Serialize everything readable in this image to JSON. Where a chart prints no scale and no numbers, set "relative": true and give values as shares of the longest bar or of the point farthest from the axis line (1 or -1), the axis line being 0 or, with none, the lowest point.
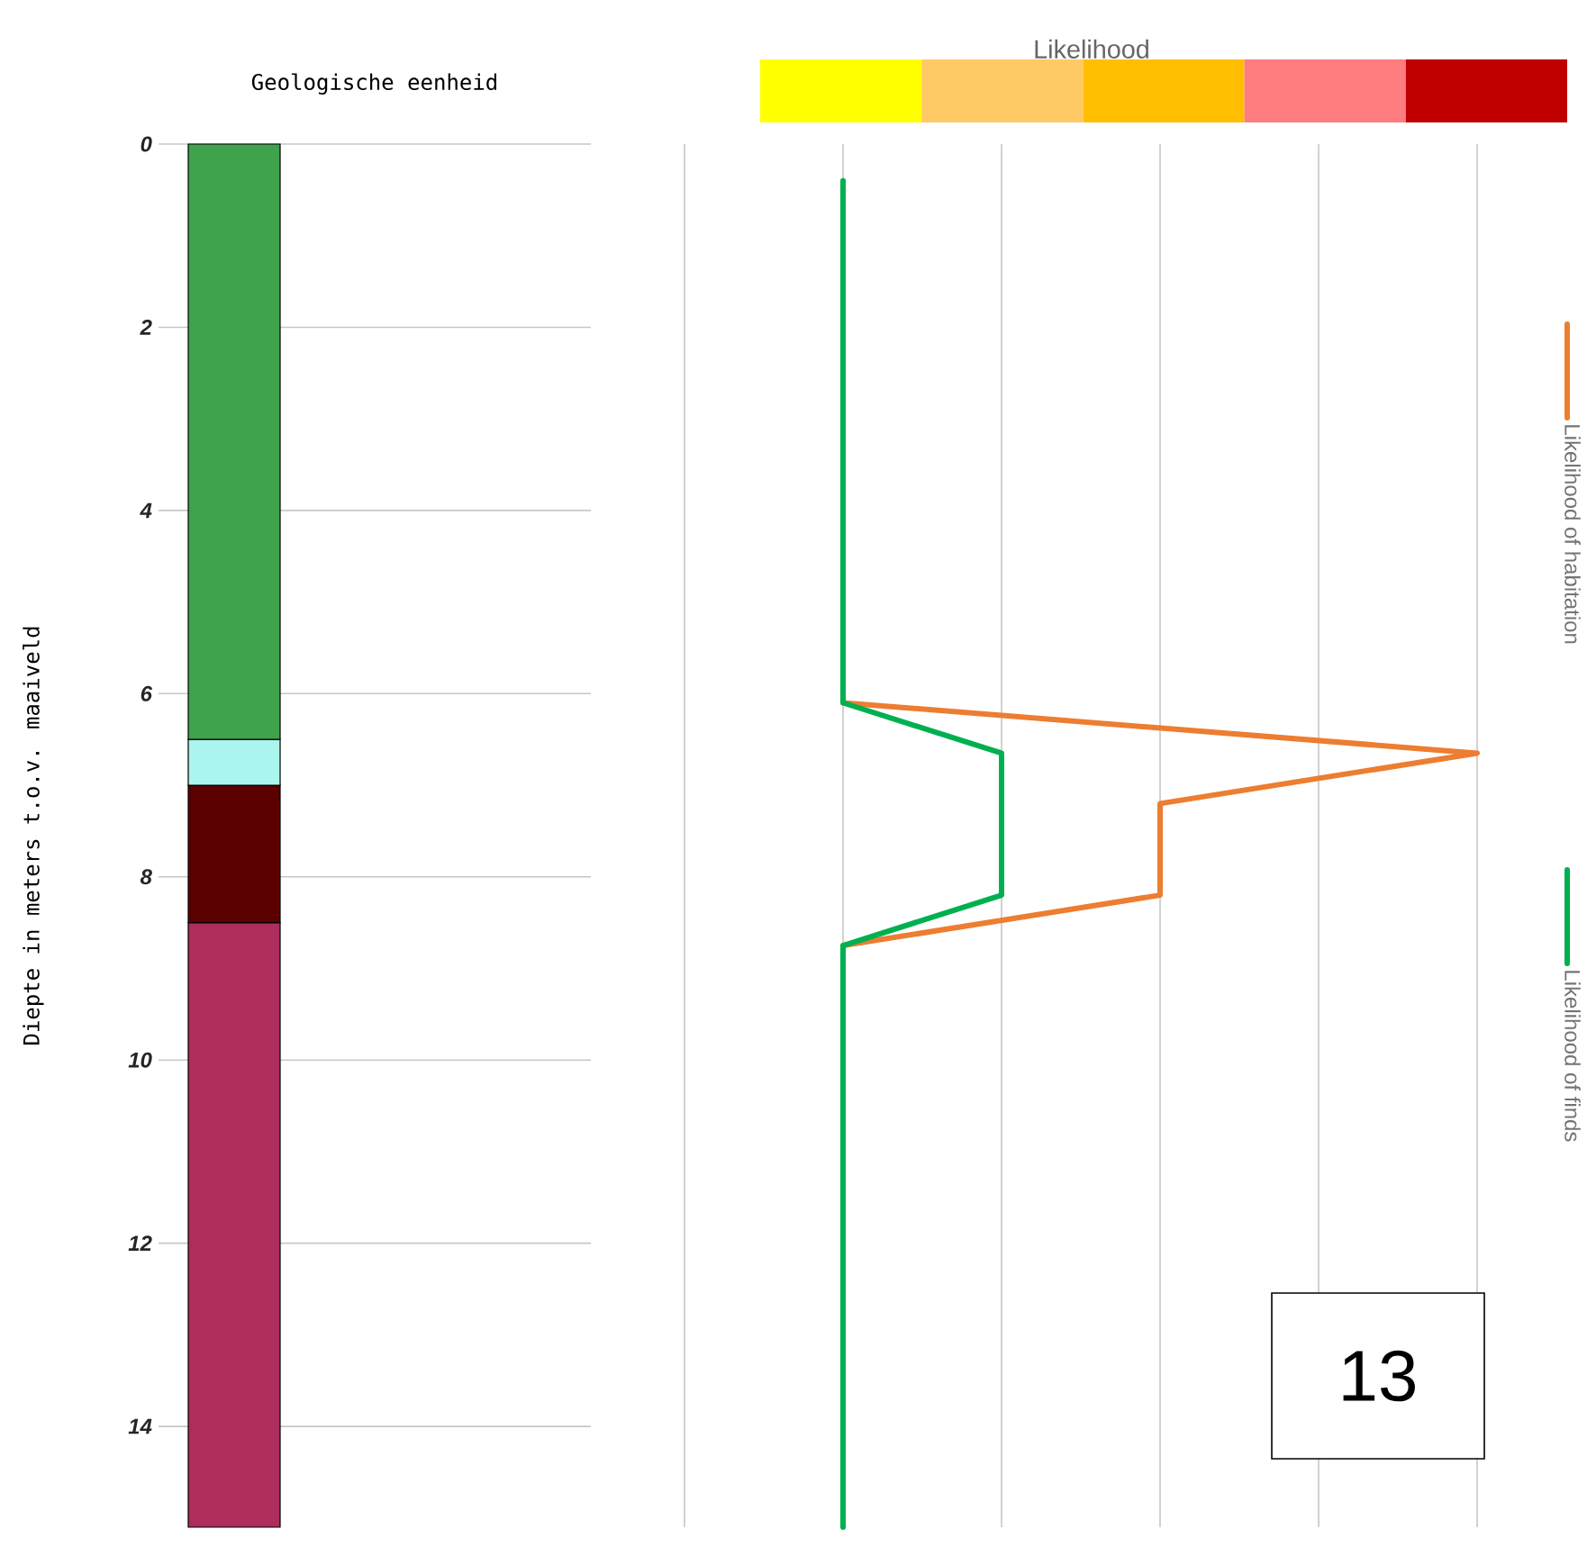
{
  "chart_data": [
    {
      "type": "bar",
      "title": "Geologische eenheid",
      "ylabel": "Diepte in meters t.o.v. maaiveld",
      "stacked": true,
      "categories": [
        null
      ],
      "series": [
        {
          "color": "#3fa34d",
          "values": [
            6.5
          ]
        },
        {
          "color": "#aaf5ee",
          "values": [
            0.5
          ]
        },
        {
          "color": "#5a0000",
          "values": [
            1.5
          ]
        },
        {
          "color": "#ae2d5d",
          "values": [
            6.6
          ]
        }
      ],
      "ylim": [
        15.1,
        0
      ],
      "yticks": [
        0,
        2,
        4,
        6,
        8,
        10,
        12,
        14
      ],
      "grid": "y"
    },
    {
      "type": "line",
      "orientation": "horizontal",
      "relative": true,
      "clabel": "Likelihood",
      "colors": [
        "#ffff00",
        "#ffca66",
        "#ffbf00",
        "#ff7c80",
        "#c00000"
      ],
      "series": [
        {
          "name": "Likelihood of habitation",
          "color": "#ed7d31",
          "x": [
            6.1,
            6.65,
            7.2,
            8.2,
            8.75
          ],
          "values": [
            0,
            1,
            0.5,
            0.5,
            0
          ]
        },
        {
          "name": "Likelihood of finds",
          "color": "#00b050",
          "x": [
            0.4,
            6.1,
            6.65,
            8.2,
            8.75,
            15.1
          ],
          "values": [
            0,
            0,
            0.25,
            0.25,
            0,
            0
          ]
        }
      ],
      "ylim": [
        15.1,
        0
      ],
      "grid": "x",
      "legend": "right",
      "tick_labels": false,
      "annotations": [
        "13"
      ]
    }
  ]
}
